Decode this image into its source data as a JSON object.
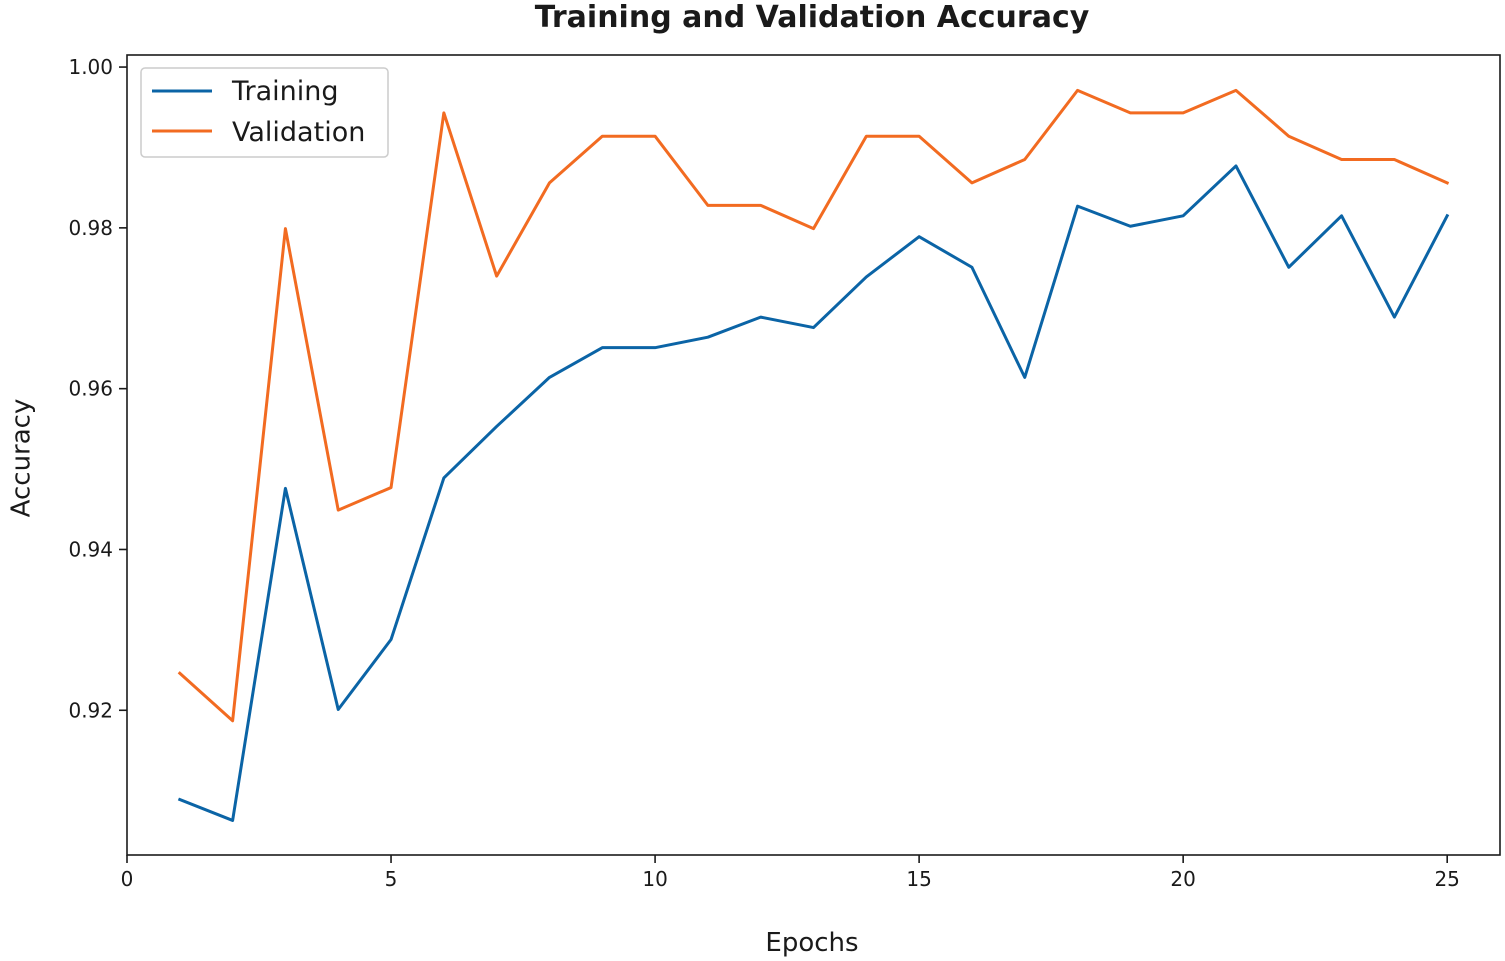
{
  "chart_data": {
    "type": "line",
    "title": "Training and Validation Accuracy",
    "xlabel": "Epochs",
    "ylabel": "Accuracy",
    "xlim": [
      0,
      26
    ],
    "ylim": [
      0.902,
      1.0015
    ],
    "xticks": [
      0,
      5,
      10,
      15,
      20,
      25
    ],
    "xtick_labels": [
      "0",
      "5",
      "10",
      "15",
      "20",
      "25"
    ],
    "yticks": [
      0.92,
      0.94,
      0.96,
      0.98,
      1.0
    ],
    "ytick_labels": [
      "0.92",
      "0.94",
      "0.96",
      "0.98",
      "1.00"
    ],
    "grid": false,
    "legend_position": "top-left",
    "x": [
      1,
      2,
      3,
      4,
      5,
      6,
      7,
      8,
      9,
      10,
      11,
      12,
      13,
      14,
      15,
      16,
      17,
      18,
      19,
      20,
      21,
      22,
      23,
      24,
      25
    ],
    "series": [
      {
        "name": "Training",
        "color": "#0b64a6",
        "values": [
          0.9089,
          0.9063,
          0.9476,
          0.9201,
          0.9288,
          0.9489,
          0.9553,
          0.9614,
          0.9651,
          0.9651,
          0.9664,
          0.9689,
          0.9676,
          0.9739,
          0.9789,
          0.9751,
          0.9614,
          0.9827,
          0.9802,
          0.9815,
          0.9877,
          0.9751,
          0.9815,
          0.9689,
          0.9815
        ]
      },
      {
        "name": "Validation",
        "color": "#f26b21",
        "values": [
          0.9246,
          0.9187,
          0.9799,
          0.9449,
          0.9477,
          0.9943,
          0.974,
          0.9856,
          0.9914,
          0.9914,
          0.9828,
          0.9828,
          0.9799,
          0.9914,
          0.9914,
          0.9856,
          0.9885,
          0.9971,
          0.9943,
          0.9943,
          0.9971,
          0.9914,
          0.9885,
          0.9885,
          0.9856
        ]
      }
    ]
  }
}
